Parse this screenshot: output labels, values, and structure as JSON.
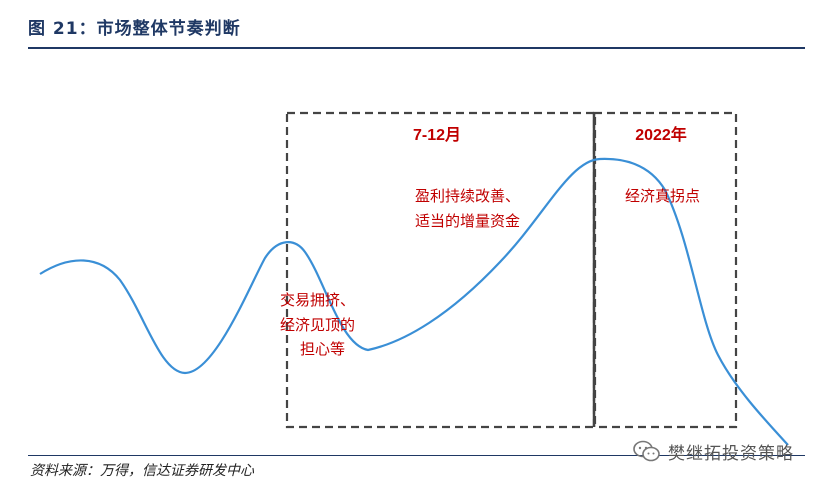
{
  "title": "图 21：市场整体节奏判断",
  "source": "资料来源：万得，信达证券研发中心",
  "watermark": {
    "text": "樊继拓投资策略",
    "icon": "wechat-icon"
  },
  "colors": {
    "curve": "#3a8fd6",
    "annotation": "#c00000",
    "box_border": "#444444",
    "title": "#1f3864"
  },
  "boxes": [
    {
      "label": "7-12月"
    },
    {
      "label": "2022年"
    }
  ],
  "annotations": {
    "left": [
      "交易拥挤、",
      "经济见顶的",
      "担心等"
    ],
    "middle": [
      "盈利持续改善、",
      "适当的增量资金"
    ],
    "right": [
      "经济真拐点"
    ]
  }
}
